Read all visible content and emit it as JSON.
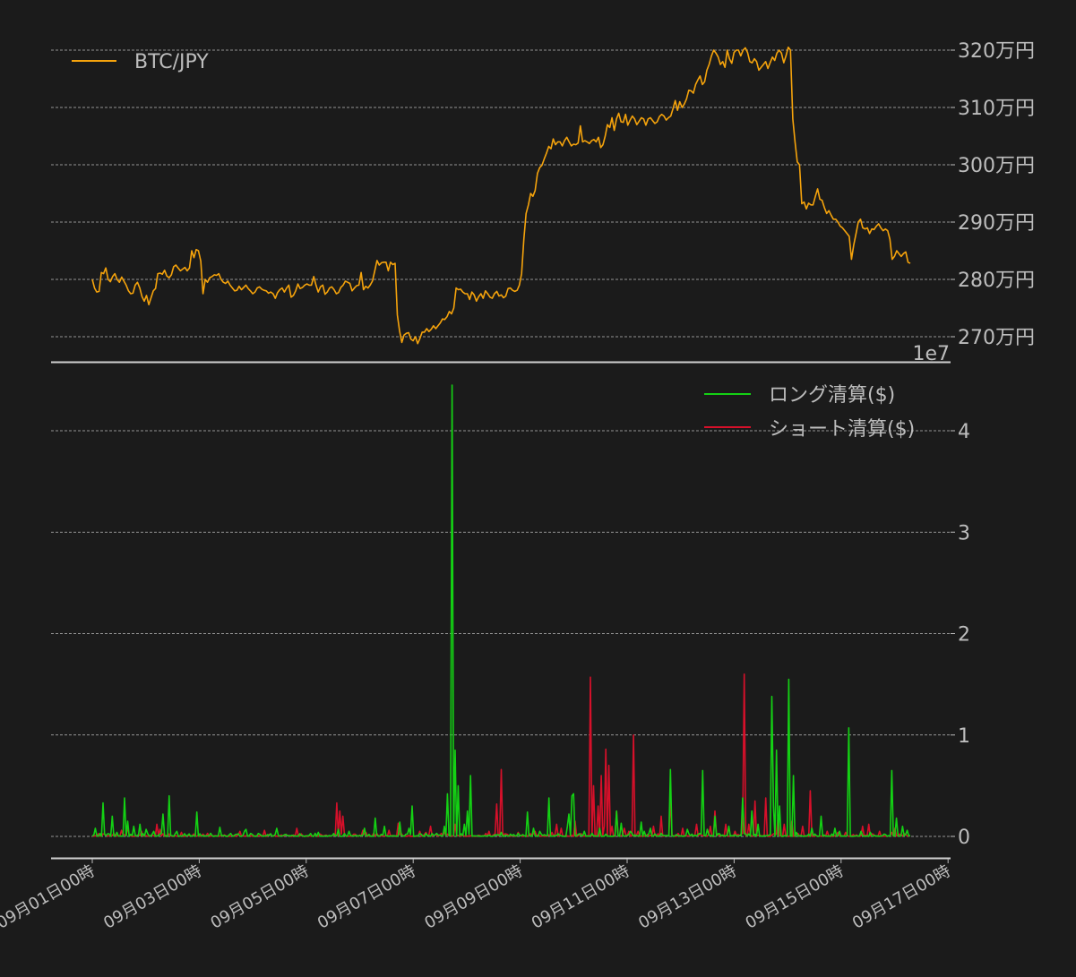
{
  "colors": {
    "background": "#1b1b1b",
    "price_line": "#f5a30c",
    "long_liq": "#14d114",
    "short_liq": "#d6102a",
    "text": "#bdbdbd",
    "grid": "#bcbcbc"
  },
  "chart_data": [
    {
      "type": "line",
      "title": "",
      "legend": [
        {
          "label": "BTC/JPY",
          "color": "#f5a30c"
        }
      ],
      "legend_position": "upper left",
      "ylabel": "",
      "yaxis_side": "right",
      "ylim": [
        2665000,
        3210000
      ],
      "yticks": [
        2700000,
        2800000,
        2900000,
        3000000,
        3100000,
        3200000
      ],
      "ytick_labels": [
        "270万円",
        "280万円",
        "290万円",
        "300万円",
        "310万円",
        "320万円"
      ],
      "grid": true,
      "x_start": "09月01日00時",
      "x_step_hours": 2,
      "series": [
        {
          "name": "BTC/JPY",
          "values": [
            2800000,
            2785000,
            2778000,
            2779000,
            2812000,
            2810000,
            2820000,
            2800000,
            2796000,
            2805000,
            2810000,
            2800000,
            2795000,
            2804000,
            2797000,
            2790000,
            2780000,
            2775000,
            2776000,
            2790000,
            2795000,
            2785000,
            2770000,
            2762000,
            2772000,
            2756000,
            2768000,
            2780000,
            2784000,
            2810000,
            2811000,
            2809000,
            2816000,
            2806000,
            2803000,
            2808000,
            2822000,
            2825000,
            2820000,
            2815000,
            2818000,
            2821000,
            2815000,
            2820000,
            2850000,
            2838000,
            2852000,
            2850000,
            2832000,
            2775000,
            2800000,
            2795000,
            2803000,
            2805000,
            2808000,
            2807000,
            2810000,
            2800000,
            2795000,
            2793000,
            2797000,
            2790000,
            2785000,
            2780000,
            2781000,
            2788000,
            2782000,
            2786000,
            2790000,
            2784000,
            2780000,
            2775000,
            2778000,
            2785000,
            2787000,
            2783000,
            2781000,
            2780000,
            2776000,
            2778000,
            2775000,
            2767000,
            2777000,
            2782000,
            2785000,
            2778000,
            2785000,
            2790000,
            2769000,
            2772000,
            2780000,
            2792000,
            2784000,
            2786000,
            2790000,
            2792000,
            2790000,
            2790000,
            2805000,
            2790000,
            2778000,
            2787000,
            2790000,
            2774000,
            2778000,
            2785000,
            2787000,
            2782000,
            2775000,
            2777000,
            2786000,
            2790000,
            2797000,
            2795000,
            2793000,
            2780000,
            2785000,
            2789000,
            2790000,
            2812000,
            2782000,
            2788000,
            2785000,
            2790000,
            2797000,
            2815000,
            2833000,
            2825000,
            2829000,
            2830000,
            2830000,
            2815000,
            2830000,
            2826000,
            2828000,
            2738000,
            2710000,
            2690000,
            2703000,
            2706000,
            2707000,
            2696000,
            2693000,
            2700000,
            2688000,
            2697000,
            2708000,
            2708000,
            2714000,
            2709000,
            2713000,
            2719000,
            2714000,
            2719000,
            2724000,
            2731000,
            2730000,
            2735000,
            2744000,
            2740000,
            2750000,
            2785000,
            2782000,
            2783000,
            2778000,
            2775000,
            2775000,
            2765000,
            2778000,
            2773000,
            2762000,
            2770000,
            2775000,
            2767000,
            2780000,
            2775000,
            2769000,
            2767000,
            2775000,
            2779000,
            2771000,
            2773000,
            2768000,
            2771000,
            2784000,
            2785000,
            2781000,
            2779000,
            2781000,
            2790000,
            2810000,
            2870000,
            2915000,
            2930000,
            2950000,
            2945000,
            2955000,
            2985000,
            2995000,
            2999000,
            3010000,
            3020000,
            3032000,
            3028000,
            3045000,
            3035000,
            3040000,
            3040000,
            3033000,
            3042000,
            3048000,
            3040000,
            3033000,
            3036000,
            3035000,
            3038000,
            3068000,
            3040000,
            3042000,
            3040000,
            3037000,
            3042000,
            3044000,
            3040000,
            3048000,
            3030000,
            3035000,
            3050000,
            3070000,
            3065000,
            3082000,
            3060000,
            3080000,
            3090000,
            3075000,
            3074000,
            3088000,
            3069000,
            3078000,
            3085000,
            3080000,
            3070000,
            3076000,
            3082000,
            3080000,
            3069000,
            3080000,
            3082000,
            3077000,
            3072000,
            3075000,
            3084000,
            3088000,
            3085000,
            3078000,
            3082000,
            3085000,
            3098000,
            3112000,
            3095000,
            3110000,
            3100000,
            3106000,
            3115000,
            3130000,
            3129000,
            3125000,
            3140000,
            3148000,
            3155000,
            3140000,
            3145000,
            3165000,
            3175000,
            3190000,
            3200000,
            3195000,
            3188000,
            3175000,
            3180000,
            3170000,
            3200000,
            3185000,
            3177000,
            3196000,
            3200000,
            3200000,
            3190000,
            3200000,
            3204000,
            3196000,
            3180000,
            3178000,
            3185000,
            3180000,
            3165000,
            3170000,
            3175000,
            3180000,
            3168000,
            3178000,
            3188000,
            3182000,
            3195000,
            3200000,
            3195000,
            3178000,
            3190000,
            3205000,
            3200000,
            3080000,
            3040000,
            3005000,
            3000000,
            2932000,
            2935000,
            2923000,
            2933000,
            2930000,
            2930000,
            2945000,
            2958000,
            2940000,
            2938000,
            2925000,
            2915000,
            2920000,
            2912000,
            2905000,
            2905000,
            2900000,
            2893000,
            2890000,
            2885000,
            2880000,
            2875000,
            2835000,
            2860000,
            2880000,
            2900000,
            2905000,
            2890000,
            2888000,
            2890000,
            2880000,
            2888000,
            2887000,
            2893000,
            2897000,
            2890000,
            2885000,
            2888000,
            2885000,
            2870000,
            2835000,
            2840000,
            2850000,
            2845000,
            2840000,
            2845000,
            2848000,
            2830000,
            2828000
          ]
        }
      ]
    },
    {
      "type": "line",
      "title": "",
      "legend": [
        {
          "label": "ロング清算($)",
          "color": "#14d114"
        },
        {
          "label": "ショート清算($)",
          "color": "#d6102a"
        }
      ],
      "legend_position": "upper right",
      "ylabel": "",
      "yaxis_side": "right",
      "offset_text": "1e7",
      "ylim": [
        -2200000,
        46000000
      ],
      "yticks": [
        0,
        10000000,
        20000000,
        30000000,
        40000000
      ],
      "ytick_labels": [
        "0",
        "1",
        "2",
        "3",
        "4"
      ],
      "grid": true,
      "xlabel": "",
      "xticks": [
        "09月01日00時",
        "09月03日00時",
        "09月05日00時",
        "09月07日00時",
        "09月09日00時",
        "09月11日00時",
        "09月13日00時",
        "09月15日00時",
        "09月17日00時"
      ],
      "x_start": "09月01日00時",
      "x_step_hours": 1,
      "spikes": {
        "long": [
          [
            2,
            0.08
          ],
          [
            7,
            0.33
          ],
          [
            13,
            0.2
          ],
          [
            16,
            0.04
          ],
          [
            21,
            0.38
          ],
          [
            23,
            0.15
          ],
          [
            27,
            0.1
          ],
          [
            31,
            0.12
          ],
          [
            35,
            0.07
          ],
          [
            40,
            0.05
          ],
          [
            46,
            0.22
          ],
          [
            50,
            0.4
          ],
          [
            55,
            0.05
          ],
          [
            68,
            0.24
          ],
          [
            77,
            0.03
          ],
          [
            83,
            0.09
          ],
          [
            99,
            0.05
          ],
          [
            100,
            0.07
          ],
          [
            120,
            0.08
          ],
          [
            145,
            0.03
          ],
          [
            147,
            0.04
          ],
          [
            160,
            0.07
          ],
          [
            167,
            0.05
          ],
          [
            177,
            0.08
          ],
          [
            184,
            0.18
          ],
          [
            190,
            0.1
          ],
          [
            200,
            0.14
          ],
          [
            206,
            0.08
          ],
          [
            208,
            0.3
          ],
          [
            224,
            0.03
          ],
          [
            229,
            0.1
          ],
          [
            231,
            0.42
          ],
          [
            234,
            4.45
          ],
          [
            236,
            0.85
          ],
          [
            238,
            0.5
          ],
          [
            242,
            0.12
          ],
          [
            244,
            0.25
          ],
          [
            246,
            0.6
          ],
          [
            266,
            0.04
          ],
          [
            277,
            0.03
          ],
          [
            283,
            0.24
          ],
          [
            287,
            0.08
          ],
          [
            291,
            0.05
          ],
          [
            297,
            0.38
          ],
          [
            309,
            0.1
          ],
          [
            310,
            0.22
          ],
          [
            312,
            0.4
          ],
          [
            313,
            0.42
          ],
          [
            320,
            0.05
          ],
          [
            325,
            0.03
          ],
          [
            330,
            0.08
          ],
          [
            341,
            0.25
          ],
          [
            344,
            0.13
          ],
          [
            350,
            0.05
          ],
          [
            357,
            0.14
          ],
          [
            359,
            0.05
          ],
          [
            363,
            0.08
          ],
          [
            370,
            0.03
          ],
          [
            376,
            0.66
          ],
          [
            387,
            0.07
          ],
          [
            397,
            0.65
          ],
          [
            400,
            0.07
          ],
          [
            405,
            0.2
          ],
          [
            414,
            0.1
          ],
          [
            423,
            0.38
          ],
          [
            429,
            0.25
          ],
          [
            433,
            0.12
          ],
          [
            442,
            1.38
          ],
          [
            443,
            0.3
          ],
          [
            445,
            0.85
          ],
          [
            447,
            0.3
          ],
          [
            453,
            1.55
          ],
          [
            456,
            0.6
          ],
          [
            458,
            0.04
          ],
          [
            468,
            0.08
          ],
          [
            474,
            0.2
          ],
          [
            483,
            0.08
          ],
          [
            486,
            0.05
          ],
          [
            492,
            1.07
          ],
          [
            500,
            0.05
          ],
          [
            506,
            0.04
          ],
          [
            520,
            0.65
          ],
          [
            523,
            0.18
          ],
          [
            527,
            0.1
          ],
          [
            530,
            0.06
          ]
        ],
        "short": [
          [
            8,
            0.02
          ],
          [
            14,
            0.03
          ],
          [
            19,
            0.06
          ],
          [
            23,
            0.1
          ],
          [
            32,
            0.05
          ],
          [
            42,
            0.12
          ],
          [
            44,
            0.07
          ],
          [
            58,
            0.04
          ],
          [
            75,
            0.03
          ],
          [
            96,
            0.05
          ],
          [
            112,
            0.06
          ],
          [
            133,
            0.08
          ],
          [
            159,
            0.33
          ],
          [
            161,
            0.25
          ],
          [
            163,
            0.2
          ],
          [
            176,
            0.06
          ],
          [
            178,
            0.04
          ],
          [
            185,
            0.03
          ],
          [
            193,
            0.06
          ],
          [
            199,
            0.13
          ],
          [
            213,
            0.05
          ],
          [
            217,
            0.04
          ],
          [
            220,
            0.1
          ],
          [
            227,
            0.03
          ],
          [
            229,
            0.05
          ],
          [
            236,
            0.12
          ],
          [
            258,
            0.05
          ],
          [
            263,
            0.32
          ],
          [
            266,
            0.66
          ],
          [
            277,
            0.04
          ],
          [
            288,
            0.05
          ],
          [
            299,
            0.04
          ],
          [
            302,
            0.12
          ],
          [
            305,
            0.08
          ],
          [
            314,
            0.15
          ],
          [
            324,
            1.57
          ],
          [
            326,
            0.5
          ],
          [
            329,
            0.3
          ],
          [
            331,
            0.6
          ],
          [
            333,
            0.1
          ],
          [
            334,
            0.86
          ],
          [
            336,
            0.7
          ],
          [
            338,
            0.1
          ],
          [
            341,
            0.25
          ],
          [
            346,
            0.08
          ],
          [
            349,
            0.05
          ],
          [
            352,
            1.0
          ],
          [
            355,
            0.05
          ],
          [
            365,
            0.1
          ],
          [
            370,
            0.2
          ],
          [
            376,
            0.38
          ],
          [
            384,
            0.08
          ],
          [
            393,
            0.12
          ],
          [
            402,
            0.1
          ],
          [
            405,
            0.25
          ],
          [
            412,
            0.12
          ],
          [
            418,
            0.05
          ],
          [
            424,
            1.6
          ],
          [
            427,
            0.12
          ],
          [
            431,
            0.35
          ],
          [
            438,
            0.38
          ],
          [
            446,
            0.2
          ],
          [
            450,
            0.12
          ],
          [
            455,
            0.15
          ],
          [
            462,
            0.1
          ],
          [
            467,
            0.45
          ],
          [
            478,
            0.05
          ],
          [
            485,
            0.04
          ],
          [
            490,
            0.04
          ],
          [
            501,
            0.1
          ],
          [
            505,
            0.12
          ],
          [
            512,
            0.05
          ],
          [
            520,
            0.04
          ],
          [
            522,
            0.08
          ]
        ]
      }
    }
  ]
}
